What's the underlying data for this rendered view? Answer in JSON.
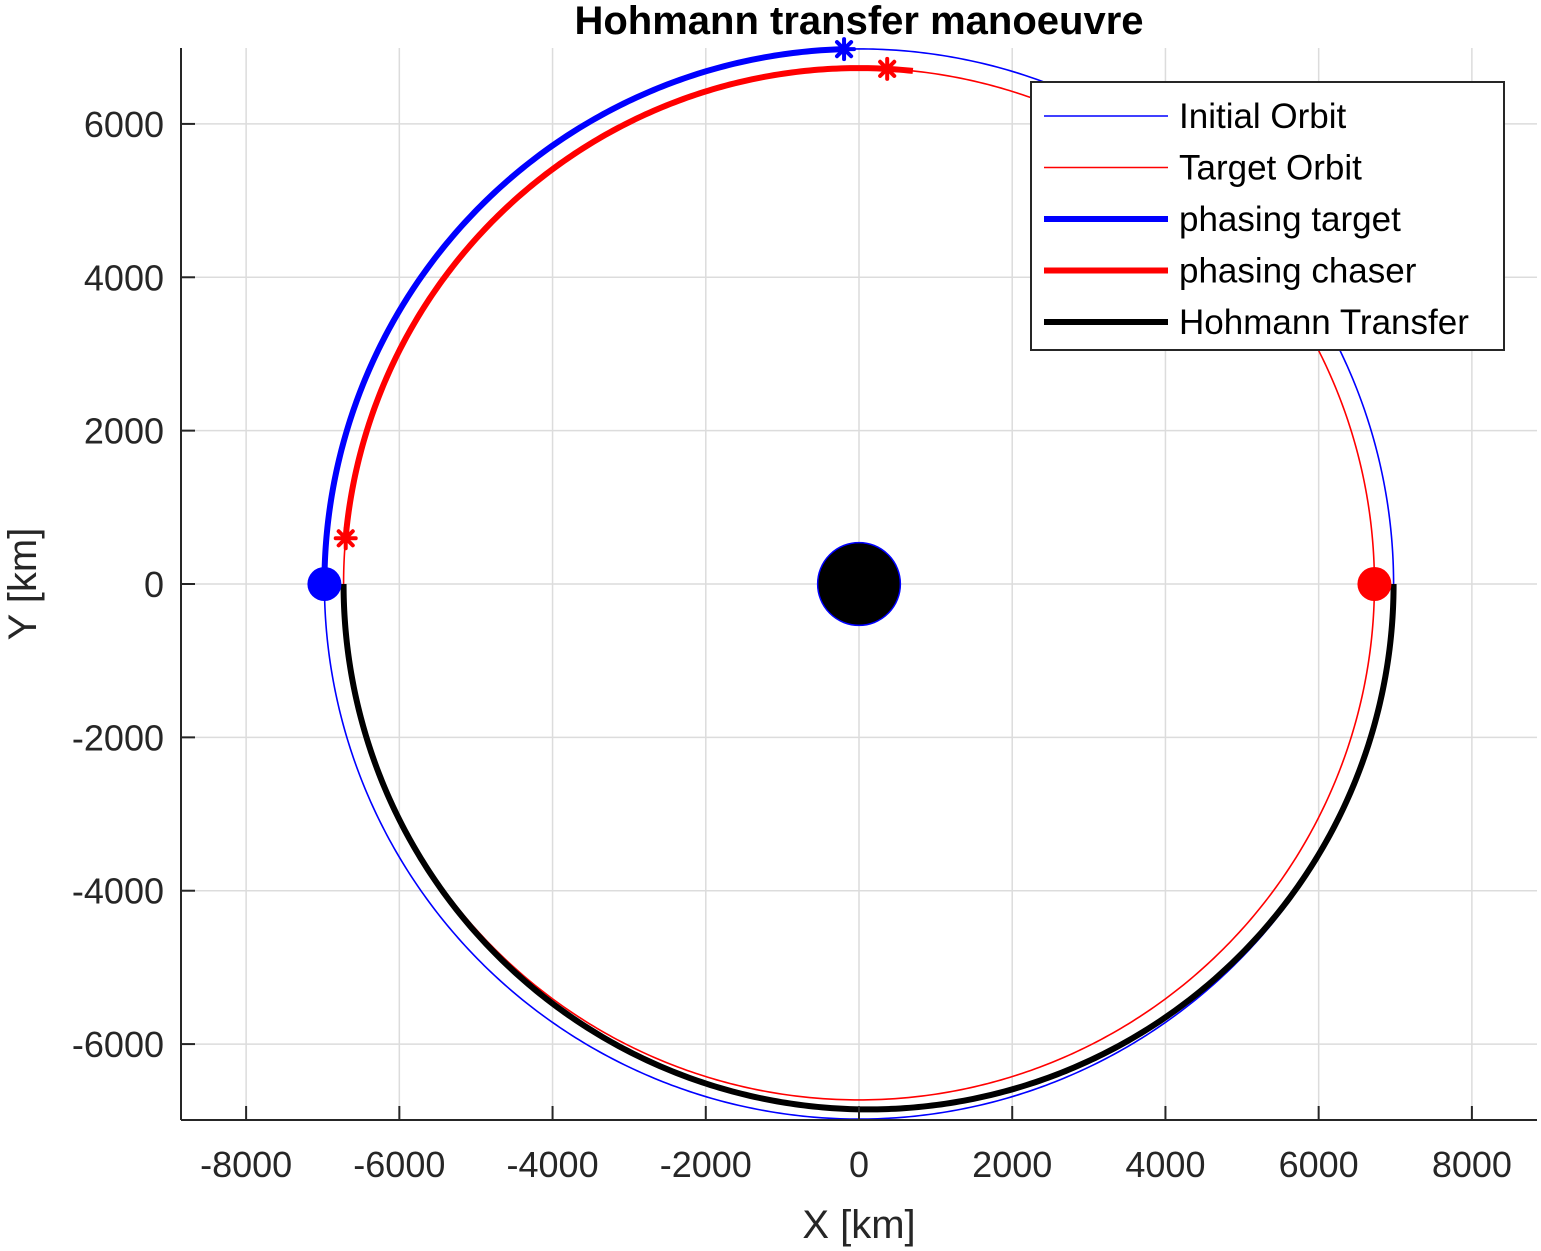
{
  "chart_data": {
    "type": "line",
    "title": "Hohmann transfer manoeuvre",
    "xlabel": "X [km]",
    "ylabel": "Y [km]",
    "xlim": [
      -8850,
      8850
    ],
    "ylim": [
      -6990,
      6990
    ],
    "xticks": [
      -8000,
      -6000,
      -4000,
      -2000,
      0,
      2000,
      4000,
      6000,
      8000
    ],
    "yticks": [
      -6000,
      -4000,
      -2000,
      0,
      2000,
      4000,
      6000
    ],
    "xtick_labels": [
      "-8000",
      "-6000",
      "-4000",
      "-2000",
      "0",
      "2000",
      "4000",
      "6000",
      "8000"
    ],
    "ytick_labels": [
      "-6000",
      "-4000",
      "-2000",
      "0",
      "2000",
      "4000",
      "6000"
    ],
    "grid": true,
    "legend_position": "top-right",
    "series": [
      {
        "name": "Initial Orbit",
        "kind": "circle",
        "radius": 6978,
        "theta_deg": [
          0,
          360
        ],
        "color": "#0000ff",
        "weight": "thin"
      },
      {
        "name": "Target Orbit",
        "kind": "circle",
        "radius": 6728,
        "theta_deg": [
          0,
          360
        ],
        "color": "#ff0000",
        "weight": "thin"
      },
      {
        "name": "phasing target",
        "kind": "circle",
        "radius": 6978,
        "theta_deg": [
          91.6,
          180
        ],
        "color": "#0000ff",
        "weight": "thick"
      },
      {
        "name": "phasing chaser",
        "kind": "circle",
        "radius": 6728,
        "theta_deg": [
          84.0,
          174.9
        ],
        "color": "#ff0000",
        "weight": "thick"
      },
      {
        "name": "Hohmann Transfer",
        "kind": "ellipse",
        "rp": 6728,
        "ra": 6978,
        "theta_deg": [
          180,
          360
        ],
        "color": "#000000",
        "weight": "thick"
      }
    ],
    "markers": [
      {
        "shape": "dot",
        "x": -6978,
        "y": 0,
        "color": "#0000ff"
      },
      {
        "shape": "dot",
        "x": 6728,
        "y": 0,
        "color": "#ff0000"
      },
      {
        "shape": "star",
        "x": -195,
        "y": 6975,
        "color": "#0000ff"
      },
      {
        "shape": "star",
        "x": 368,
        "y": 6718,
        "color": "#ff0000"
      },
      {
        "shape": "star",
        "x": -6700,
        "y": 596,
        "color": "#ff0000"
      }
    ],
    "central_body": {
      "x": 0,
      "y": 0,
      "radius": 540,
      "fill": "#000000",
      "edge": "#0000ff"
    }
  }
}
